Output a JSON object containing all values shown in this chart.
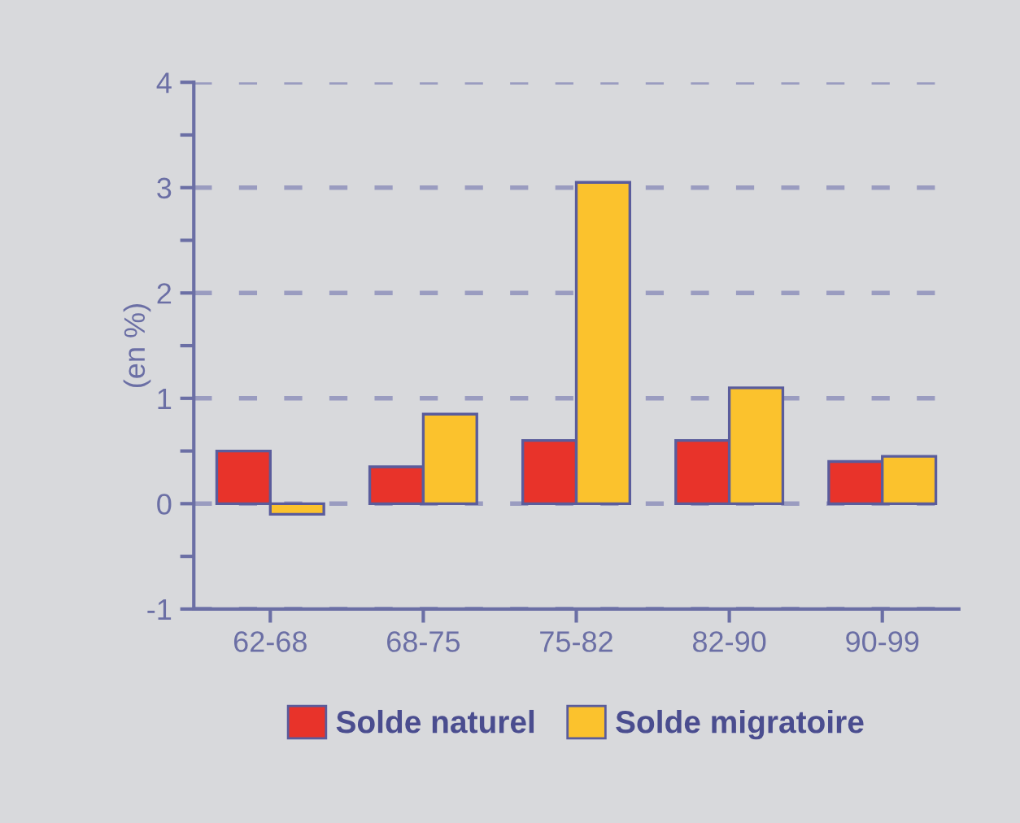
{
  "chart_data": {
    "type": "bar",
    "ylabel": "(en %)",
    "categories": [
      "62-68",
      "68-75",
      "75-82",
      "82-90",
      "90-99"
    ],
    "series": [
      {
        "name": "Solde naturel",
        "color": "#e8332a",
        "values": [
          0.5,
          0.35,
          0.6,
          0.6,
          0.4
        ]
      },
      {
        "name": "Solde migratoire",
        "color": "#fbc22d",
        "values": [
          -0.1,
          0.85,
          3.05,
          1.1,
          0.45
        ]
      }
    ],
    "ylim": [
      -1,
      4
    ],
    "yticks": [
      -1,
      {
        "value": -0.5,
        "label": null
      },
      0,
      {
        "value": 0.5,
        "label": null
      },
      1,
      {
        "value": 1.5,
        "label": null
      },
      2,
      {
        "value": 2.5,
        "label": null
      },
      3,
      {
        "value": 3.5,
        "label": null
      },
      4
    ],
    "grid": "y",
    "line_style": "dashed",
    "legend": "bottom"
  }
}
